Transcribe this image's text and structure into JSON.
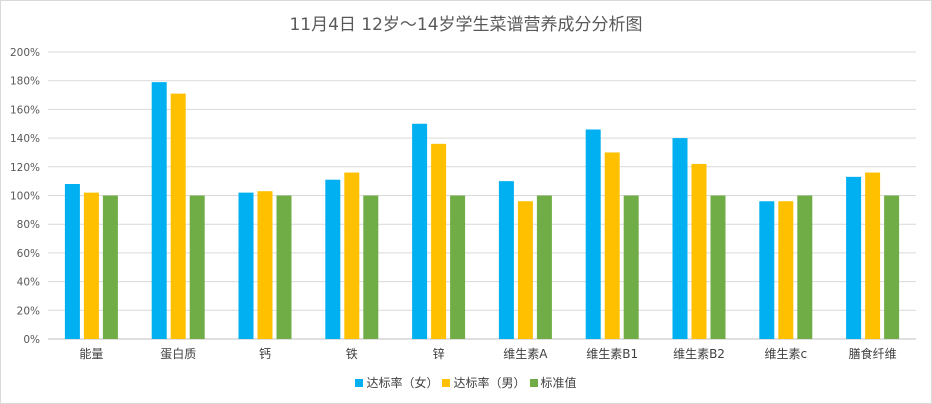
{
  "chart_data": {
    "type": "bar",
    "title": "11月4日 12岁～14岁学生菜谱营养成分分析图",
    "xlabel": "",
    "ylabel": "",
    "ylim": [
      0,
      200
    ],
    "ytick_step": 20,
    "ytick_suffix": "%",
    "grid": true,
    "legend_position": "bottom",
    "categories": [
      "能量",
      "蛋白质",
      "钙",
      "铁",
      "锌",
      "维生素A",
      "维生素B1",
      "维生素B2",
      "维生素c",
      "膳食纤维"
    ],
    "series": [
      {
        "name": "达标率（女）",
        "color": "#00b0f0",
        "values": [
          108,
          179,
          102,
          111,
          150,
          110,
          146,
          140,
          96,
          113
        ]
      },
      {
        "name": "达标率（男）",
        "color": "#ffc000",
        "values": [
          102,
          171,
          103,
          116,
          136,
          96,
          130,
          122,
          96,
          116
        ]
      },
      {
        "name": "标准值",
        "color": "#70ad47",
        "values": [
          100,
          100,
          100,
          100,
          100,
          100,
          100,
          100,
          100,
          100
        ]
      }
    ]
  }
}
